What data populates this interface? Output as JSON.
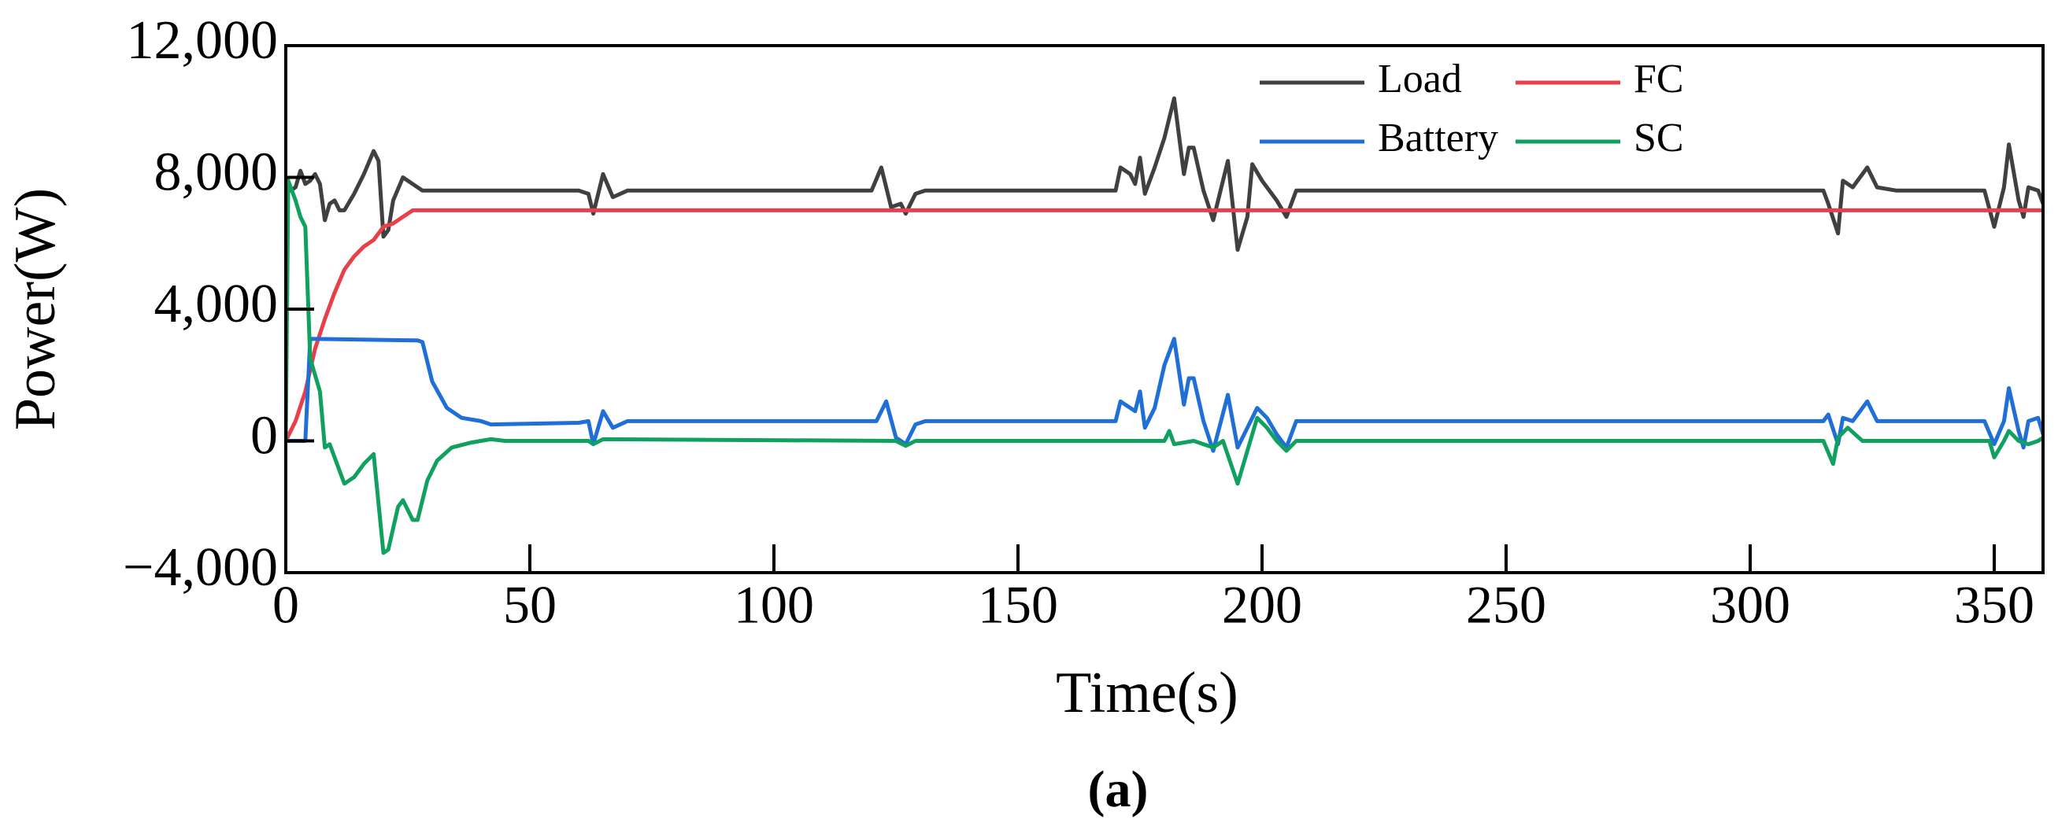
{
  "chart_data": {
    "type": "line",
    "xlabel": "Time(s)",
    "ylabel": "Power(W)",
    "caption": "(a)",
    "xlim": [
      0,
      360
    ],
    "xticks": [
      0,
      50,
      100,
      150,
      200,
      250,
      300,
      350
    ],
    "ylim": [
      -4000,
      12000
    ],
    "yticks": [
      {
        "value": -4000,
        "label": "−4,000"
      },
      0,
      {
        "value": 4000,
        "label": "4,000"
      },
      {
        "value": 8000,
        "label": "8,000"
      },
      {
        "value": 12000,
        "label": "12,000"
      }
    ],
    "legend": "upper right",
    "series": [
      {
        "name": "Load",
        "color": "#404040",
        "x": [
          0,
          1,
          2,
          3,
          4,
          5,
          6,
          7,
          8,
          9,
          10,
          11,
          12,
          14,
          16,
          18,
          19,
          20,
          21,
          22,
          24,
          26,
          28,
          35,
          60,
          62,
          63,
          65,
          67,
          70,
          120,
          122,
          124,
          126,
          127,
          129,
          131,
          170,
          171,
          173,
          174,
          175,
          176,
          178,
          180,
          182,
          184,
          185,
          186,
          188,
          190,
          193,
          195,
          197,
          198,
          200,
          203,
          205,
          207,
          210,
          315,
          316,
          318,
          319,
          321,
          324,
          326,
          330,
          348,
          350,
          352,
          353,
          355,
          356,
          357,
          359,
          360
        ],
        "values": [
          8000,
          7600,
          7700,
          8200,
          7800,
          7900,
          8100,
          7800,
          6700,
          7200,
          7300,
          7000,
          7000,
          7500,
          8100,
          8800,
          8500,
          6200,
          6400,
          7300,
          8000,
          7800,
          7600,
          7600,
          7600,
          7500,
          6900,
          8100,
          7400,
          7600,
          7600,
          8300,
          7100,
          7200,
          6900,
          7500,
          7600,
          7600,
          8300,
          8100,
          7800,
          8600,
          7500,
          8300,
          9200,
          10400,
          8100,
          8900,
          8900,
          7600,
          6700,
          8500,
          5800,
          6800,
          8400,
          7900,
          7300,
          6800,
          7600,
          7600,
          7600,
          7200,
          6300,
          7900,
          7700,
          8300,
          7700,
          7600,
          7600,
          6500,
          7700,
          9000,
          7300,
          6800,
          7700,
          7600,
          7200
        ]
      },
      {
        "name": "FC",
        "color": "#e8404a",
        "x": [
          0,
          2,
          4,
          6,
          8,
          10,
          12,
          14,
          16,
          18,
          20,
          22,
          24,
          26,
          28,
          360
        ],
        "values": [
          0,
          600,
          1500,
          2800,
          3700,
          4500,
          5200,
          5600,
          5900,
          6100,
          6500,
          6600,
          6800,
          7000,
          7000,
          7000
        ]
      },
      {
        "name": "Battery",
        "color": "#1f6fd6",
        "x": [
          0,
          4,
          5,
          27,
          28,
          30,
          33,
          36,
          40,
          42,
          60,
          62,
          63,
          64,
          65,
          67,
          70,
          121,
          123,
          125,
          127,
          129,
          131,
          170,
          171,
          173,
          174,
          175,
          176,
          178,
          180,
          182,
          184,
          185,
          186,
          188,
          190,
          193,
          195,
          197,
          199,
          201,
          203,
          205,
          207,
          315,
          316,
          318,
          319,
          321,
          324,
          326,
          330,
          348,
          350,
          352,
          353,
          355,
          356,
          357,
          359,
          360
        ],
        "values": [
          0,
          0,
          3100,
          3050,
          3000,
          1800,
          1000,
          700,
          600,
          500,
          550,
          600,
          -100,
          400,
          900,
          400,
          600,
          600,
          1200,
          100,
          -100,
          500,
          600,
          600,
          1200,
          1000,
          900,
          1500,
          400,
          1000,
          2300,
          3100,
          1100,
          1900,
          1900,
          600,
          -300,
          1400,
          -200,
          400,
          1000,
          700,
          200,
          -200,
          600,
          600,
          800,
          -100,
          700,
          600,
          1200,
          600,
          600,
          600,
          -100,
          600,
          1600,
          300,
          -200,
          600,
          700,
          200
        ]
      },
      {
        "name": "SC",
        "color": "#10a060",
        "x": [
          0,
          0.5,
          2,
          3,
          4,
          5,
          7,
          8,
          9,
          11,
          12,
          14,
          16,
          18,
          20,
          21,
          23,
          24,
          26,
          27,
          29,
          31,
          34,
          38,
          42,
          45,
          62,
          63,
          65,
          125,
          127,
          129,
          180,
          181,
          182,
          186,
          188,
          190,
          192,
          195,
          197,
          199,
          201,
          203,
          205,
          207,
          315,
          317,
          318,
          320,
          323,
          349,
          350,
          352,
          353,
          355,
          357,
          359,
          360
        ],
        "values": [
          0,
          7900,
          7300,
          6800,
          6500,
          2500,
          1500,
          -200,
          -100,
          -900,
          -1300,
          -1100,
          -700,
          -400,
          -3400,
          -3300,
          -2000,
          -1800,
          -2400,
          -2400,
          -1200,
          -600,
          -200,
          -50,
          50,
          0,
          0,
          -100,
          50,
          0,
          -150,
          0,
          0,
          300,
          -100,
          0,
          -100,
          -200,
          0,
          -1300,
          -300,
          700,
          400,
          0,
          -300,
          0,
          0,
          -700,
          100,
          400,
          0,
          0,
          -500,
          0,
          300,
          0,
          -100,
          0,
          100
        ]
      }
    ]
  }
}
